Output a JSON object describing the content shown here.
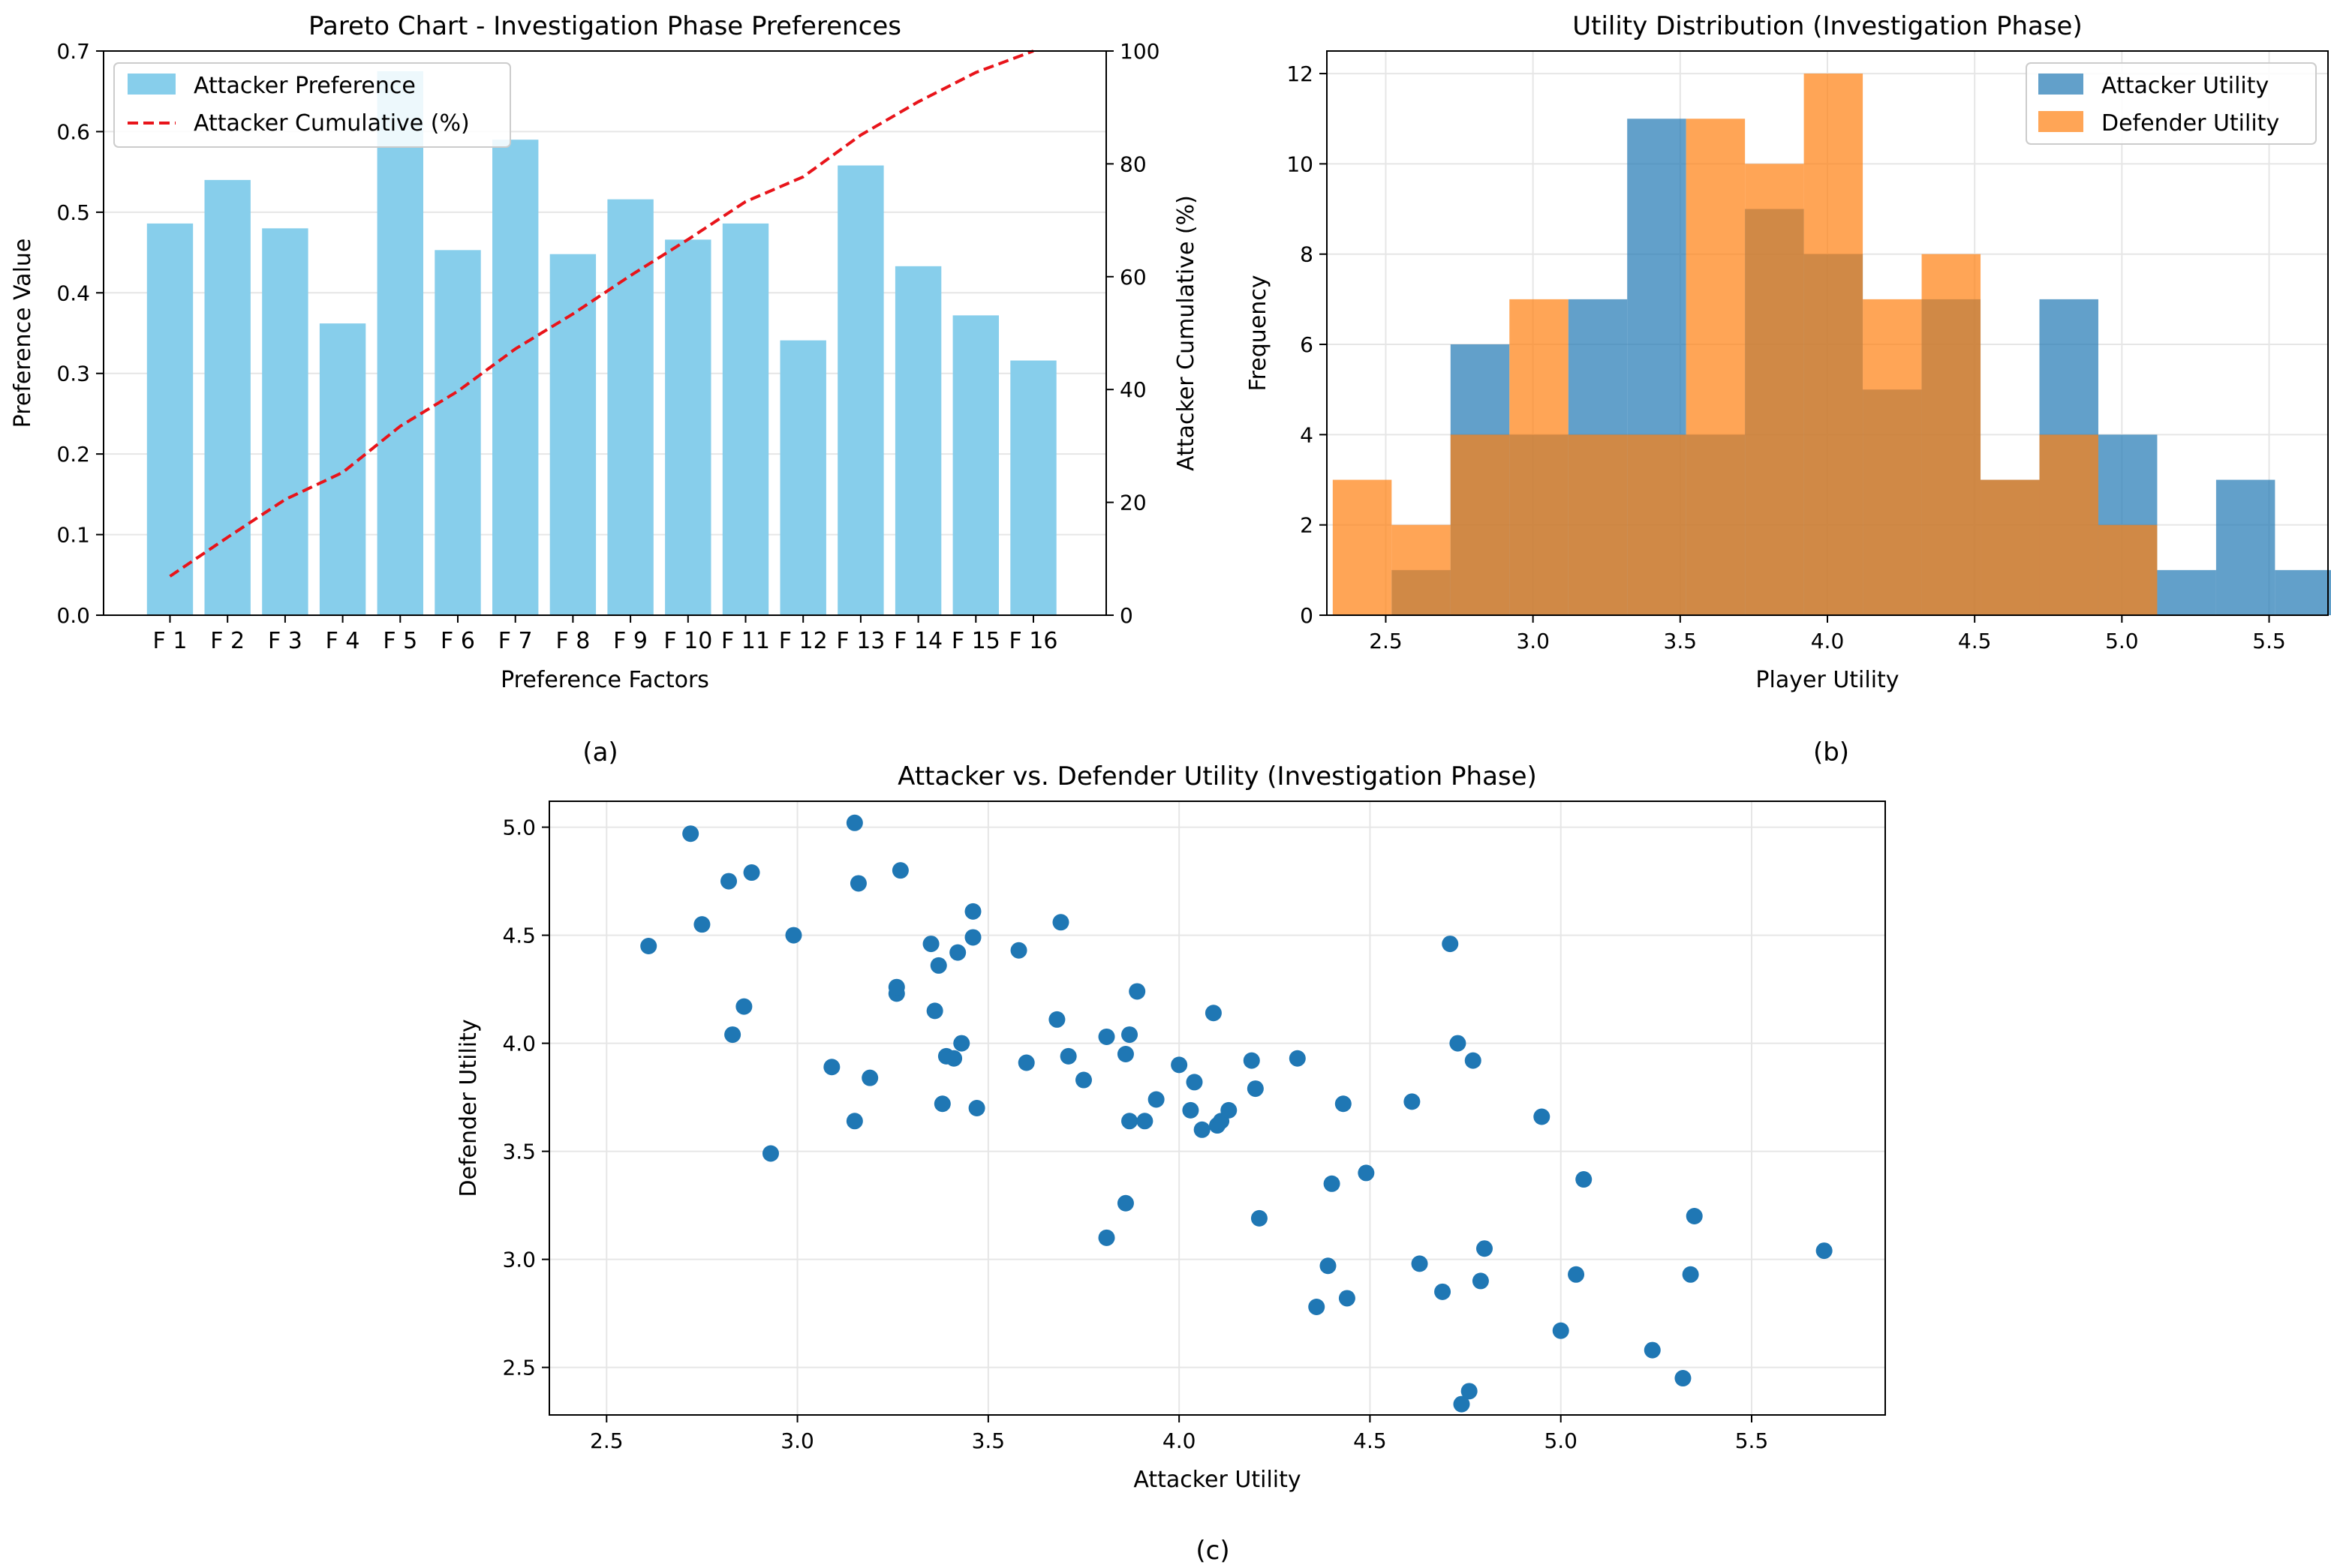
{
  "panel_labels": {
    "a": "(a)",
    "b": "(b)",
    "c": "(c)"
  },
  "colors": {
    "bar": "#87CEEB",
    "cumulative": "#E8141A",
    "attacker": "#1F77B4",
    "defender": "#FF7F0E",
    "grid": "#E6E6E6"
  },
  "chart_data": [
    {
      "type": "bar",
      "title": "Pareto Chart - Investigation Phase Preferences",
      "xlabel": "Preference Factors",
      "ylabel": "Preference Value",
      "ylabel_right": "Attacker Cumulative (%)",
      "ylim": [
        0,
        0.7
      ],
      "ylim_right": [
        0,
        100
      ],
      "yticks": [
        "0.0",
        "0.1",
        "0.2",
        "0.3",
        "0.4",
        "0.5",
        "0.6",
        "0.7"
      ],
      "yticks_right": [
        "0",
        "20",
        "40",
        "60",
        "80",
        "100"
      ],
      "categories": [
        "F 1",
        "F 2",
        "F 3",
        "F 4",
        "F 5",
        "F 6",
        "F 7",
        "F 8",
        "F 9",
        "F 10",
        "F 11",
        "F 12",
        "F 13",
        "F 14",
        "F 15",
        "F 16"
      ],
      "series": [
        {
          "name": "Attacker Preference",
          "type": "bar",
          "values": [
            0.486,
            0.54,
            0.48,
            0.362,
            0.675,
            0.453,
            0.59,
            0.448,
            0.516,
            0.466,
            0.486,
            0.341,
            0.558,
            0.433,
            0.372,
            0.316
          ]
        },
        {
          "name": "Attacker Cumulative (%)",
          "type": "line",
          "axis": "right",
          "values": [
            6.9,
            13.8,
            20.5,
            25.3,
            33.5,
            39.7,
            47.2,
            53.4,
            60.2,
            66.6,
            73.3,
            77.7,
            85.1,
            91.0,
            96.2,
            100.0
          ]
        }
      ],
      "legend": "upper-left"
    },
    {
      "type": "histogram",
      "title": "Utility Distribution (Investigation Phase)",
      "xlabel": "Player Utility",
      "ylabel": "Frequency",
      "xlim": [
        2.3,
        5.7
      ],
      "ylim": [
        0,
        12.5
      ],
      "xticks": [
        "2.5",
        "3.0",
        "3.5",
        "4.0",
        "4.5",
        "5.0",
        "5.5"
      ],
      "yticks": [
        "0",
        "2",
        "4",
        "6",
        "8",
        "10",
        "12"
      ],
      "series": [
        {
          "name": "Attacker Utility",
          "bins": [
            2.52,
            2.72,
            2.92,
            3.12,
            3.32,
            3.52,
            3.72,
            3.92,
            4.12,
            4.32,
            4.52,
            4.72,
            4.92,
            5.12,
            5.32,
            5.52,
            5.72
          ],
          "counts": [
            1,
            6,
            4,
            7,
            11,
            4,
            9,
            8,
            5,
            7,
            3,
            7,
            4,
            1,
            3,
            1
          ]
        },
        {
          "name": "Defender Utility",
          "bins": [
            2.32,
            2.52,
            2.72,
            2.92,
            3.12,
            3.32,
            3.52,
            3.72,
            3.92,
            4.12,
            4.32,
            4.52,
            4.72,
            4.92,
            5.12
          ],
          "counts": [
            3,
            2,
            4,
            7,
            4,
            4,
            11,
            10,
            12,
            7,
            8,
            3,
            4,
            2
          ]
        }
      ],
      "legend": "upper-right"
    },
    {
      "type": "scatter",
      "title": "Attacker vs. Defender Utility (Investigation Phase)",
      "xlabel": "Attacker Utility",
      "ylabel": "Defender Utility",
      "xlim": [
        2.35,
        5.85
      ],
      "ylim": [
        2.28,
        5.12
      ],
      "xticks": [
        "2.5",
        "3.0",
        "3.5",
        "4.0",
        "4.5",
        "5.0",
        "5.5"
      ],
      "yticks": [
        "2.5",
        "3.0",
        "3.5",
        "4.0",
        "4.5",
        "5.0"
      ],
      "x": [
        2.61,
        2.72,
        2.75,
        2.82,
        2.83,
        2.86,
        2.88,
        2.93,
        2.99,
        3.09,
        3.15,
        3.15,
        3.16,
        3.19,
        3.26,
        3.26,
        3.27,
        3.35,
        3.36,
        3.37,
        3.38,
        3.39,
        3.41,
        3.42,
        3.43,
        3.46,
        3.46,
        3.47,
        3.58,
        3.6,
        3.68,
        3.69,
        3.71,
        3.75,
        3.81,
        3.81,
        3.86,
        3.86,
        3.87,
        3.87,
        3.89,
        3.91,
        3.94,
        4.0,
        4.03,
        4.04,
        4.06,
        4.09,
        4.1,
        4.11,
        4.13,
        4.19,
        4.2,
        4.21,
        4.31,
        4.36,
        4.39,
        4.4,
        4.43,
        4.44,
        4.49,
        4.61,
        4.63,
        4.69,
        4.71,
        4.73,
        4.74,
        4.76,
        4.77,
        4.79,
        4.8,
        4.95,
        5.0,
        5.04,
        5.06,
        5.24,
        5.32,
        5.34,
        5.35,
        5.69
      ],
      "y": [
        4.45,
        4.97,
        4.55,
        4.75,
        4.04,
        4.17,
        4.79,
        3.49,
        4.5,
        3.89,
        5.02,
        3.64,
        4.74,
        3.84,
        4.23,
        4.26,
        4.8,
        4.46,
        4.15,
        4.36,
        3.72,
        3.94,
        3.93,
        4.42,
        4.0,
        4.49,
        4.61,
        3.7,
        4.43,
        3.91,
        4.11,
        4.56,
        3.94,
        3.83,
        4.03,
        3.1,
        3.26,
        3.95,
        4.04,
        3.64,
        4.24,
        3.64,
        3.74,
        3.9,
        3.69,
        3.82,
        3.6,
        4.14,
        3.62,
        3.64,
        3.69,
        3.92,
        3.79,
        3.19,
        3.93,
        2.78,
        2.97,
        3.35,
        3.72,
        2.82,
        3.4,
        3.73,
        2.98,
        2.85,
        4.46,
        4.0,
        2.33,
        2.39,
        3.92,
        2.9,
        3.05,
        3.66,
        2.67,
        2.93,
        3.37,
        2.58,
        2.45,
        2.93,
        3.2,
        3.04
      ]
    }
  ]
}
